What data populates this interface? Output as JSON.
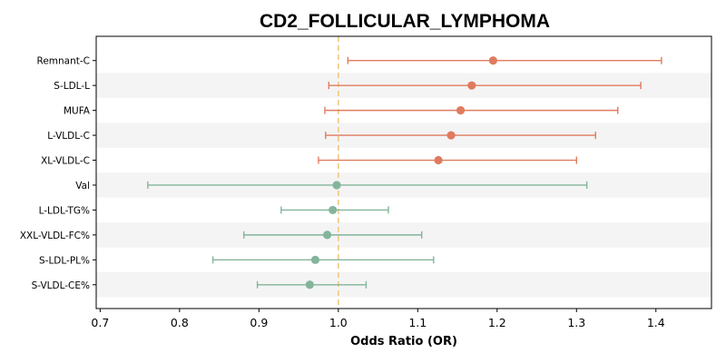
{
  "chart_data": {
    "type": "forest",
    "title": "CD2_FOLLICULAR_LYMPHOMA",
    "xlabel": "Odds Ratio (OR)",
    "ylabel": "",
    "xlim": [
      0.695,
      1.47
    ],
    "xticks": [
      0.7,
      0.8,
      0.9,
      1.0,
      1.1,
      1.2,
      1.3,
      1.4
    ],
    "xtick_labels": [
      "0.7",
      "0.8",
      "0.9",
      "1.0",
      "1.1",
      "1.2",
      "1.3",
      "1.4"
    ],
    "reference_line": 1.0,
    "categories": [
      "Remnant-C",
      "S-LDL-L",
      "MUFA",
      "L-VLDL-C",
      "XL-VLDL-C",
      "Val",
      "L-LDL-TG%",
      "XXL-VLDL-FC%",
      "S-LDL-PL%",
      "S-VLDL-CE%"
    ],
    "or": [
      1.195,
      1.168,
      1.154,
      1.142,
      1.126,
      0.998,
      0.993,
      0.986,
      0.971,
      0.964
    ],
    "ci_low": [
      1.012,
      0.988,
      0.983,
      0.984,
      0.975,
      0.76,
      0.928,
      0.881,
      0.842,
      0.898
    ],
    "ci_high": [
      1.407,
      1.381,
      1.352,
      1.324,
      1.3,
      1.313,
      1.063,
      1.105,
      1.12,
      1.035
    ],
    "colors": [
      "#e07b5f",
      "#e07b5f",
      "#e07b5f",
      "#e07b5f",
      "#e07b5f",
      "#83b59b",
      "#83b59b",
      "#83b59b",
      "#83b59b",
      "#83b59b"
    ],
    "reference_color": "#f2c77e",
    "band_color": "#f4f4f4",
    "grid": false,
    "legend": "none"
  }
}
